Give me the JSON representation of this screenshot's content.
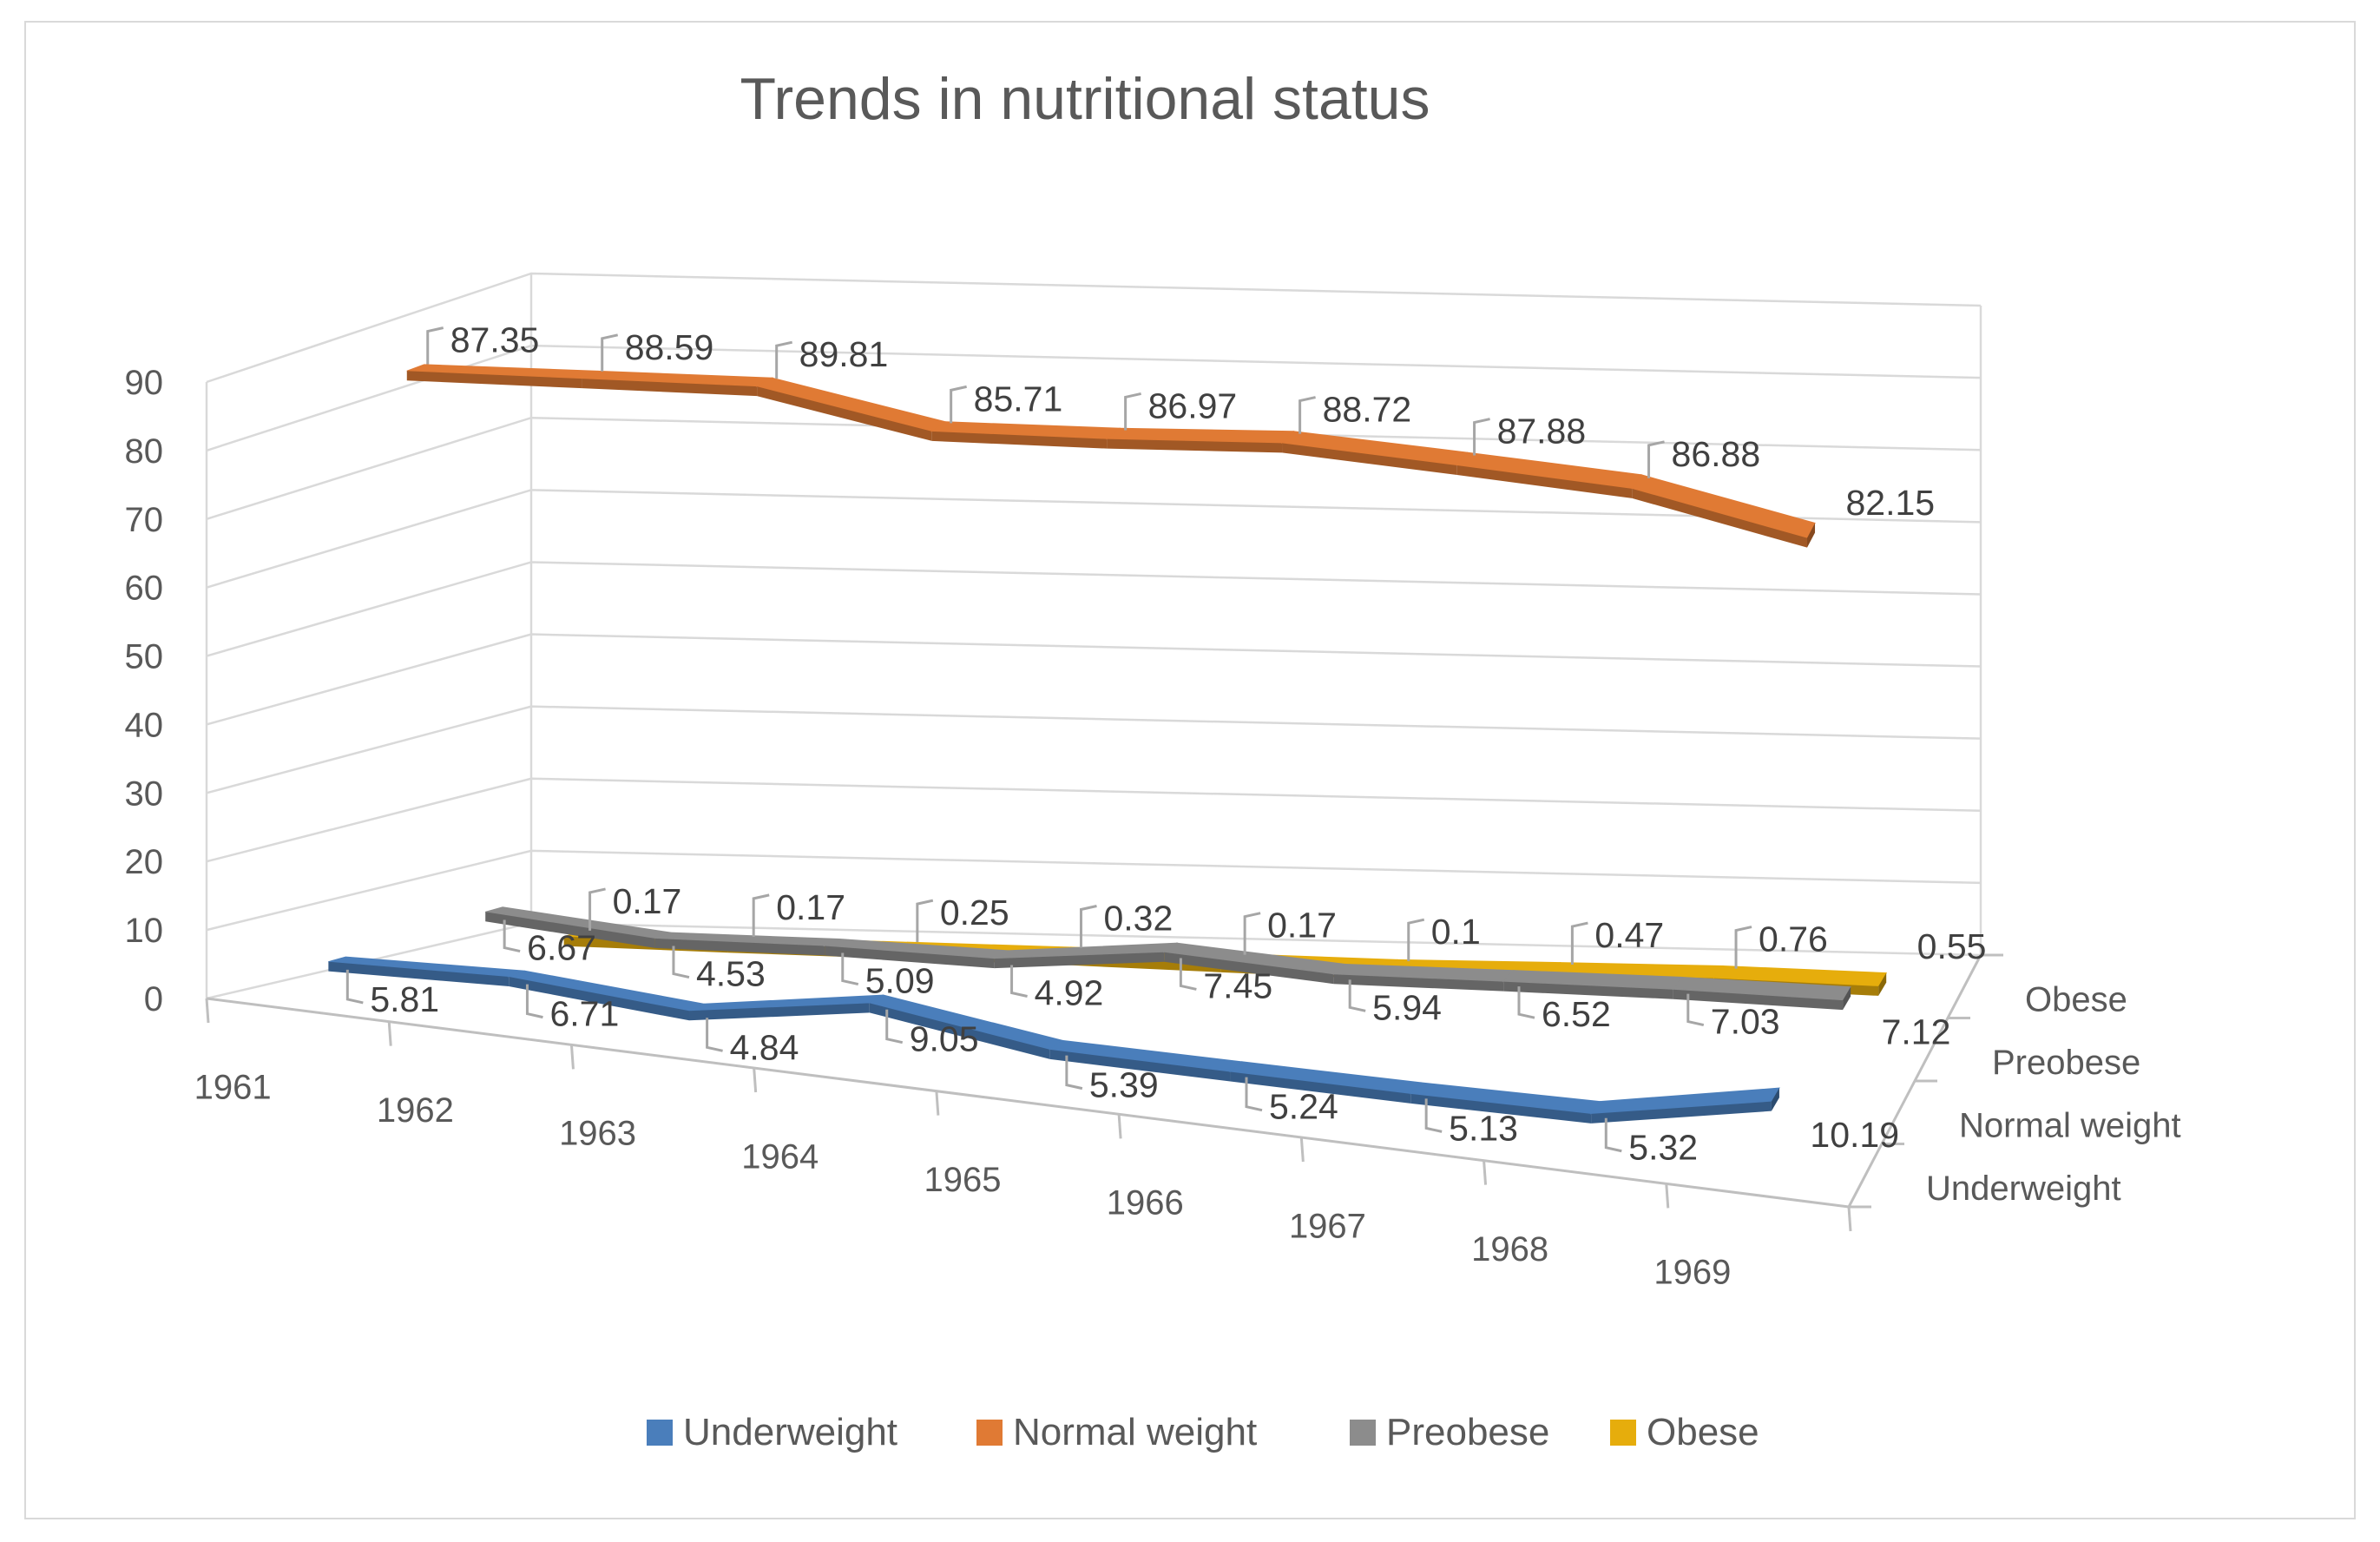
{
  "chart_data": {
    "type": "line",
    "subtype": "3d-line",
    "title": "Trends in nutritional status",
    "categories": [
      "1961",
      "1962",
      "1963",
      "1964",
      "1965",
      "1966",
      "1967",
      "1968",
      "1969"
    ],
    "y_ticks": [
      "0",
      "10",
      "20",
      "30",
      "40",
      "50",
      "60",
      "70",
      "80",
      "90"
    ],
    "ylim": [
      0,
      90
    ],
    "grid": true,
    "depth_axis": [
      "Underweight",
      "Normal weight",
      "Preobese",
      "Obese"
    ],
    "legend_position": "bottom",
    "series": [
      {
        "name": "Underweight",
        "color": "#4a7ebb",
        "values": [
          5.81,
          6.71,
          4.84,
          9.05,
          5.39,
          5.24,
          5.13,
          5.32,
          10.19
        ],
        "labels": [
          "5.81",
          "6.71",
          "4.84",
          "9.05",
          "5.39",
          "5.24",
          "5.13",
          "5.32",
          "10.19"
        ]
      },
      {
        "name": "Normal weight",
        "color": "#e07a34",
        "values": [
          87.35,
          88.59,
          89.81,
          85.71,
          86.97,
          88.72,
          87.88,
          86.88,
          82.15
        ],
        "labels": [
          "87.35",
          "88.59",
          "89.81",
          "85.71",
          "86.97",
          "88.72",
          "87.88",
          "86.88",
          "82.15"
        ]
      },
      {
        "name": "Preobese",
        "color": "#8c8c8c",
        "values": [
          6.67,
          4.53,
          5.09,
          4.92,
          7.45,
          5.94,
          6.52,
          7.03,
          7.12
        ],
        "labels": [
          "6.67",
          "4.53",
          "5.09",
          "4.92",
          "7.45",
          "5.94",
          "6.52",
          "7.03",
          "7.12"
        ]
      },
      {
        "name": "Obese",
        "color": "#e6ad0c",
        "values": [
          0.17,
          0.17,
          0.25,
          0.32,
          0.17,
          0.1,
          0.47,
          0.76,
          0.55
        ],
        "labels": [
          "0.17",
          "0.17",
          "0.25",
          "0.32",
          "0.17",
          "0.1",
          "0.47",
          "0.76",
          "0.55"
        ]
      }
    ]
  }
}
